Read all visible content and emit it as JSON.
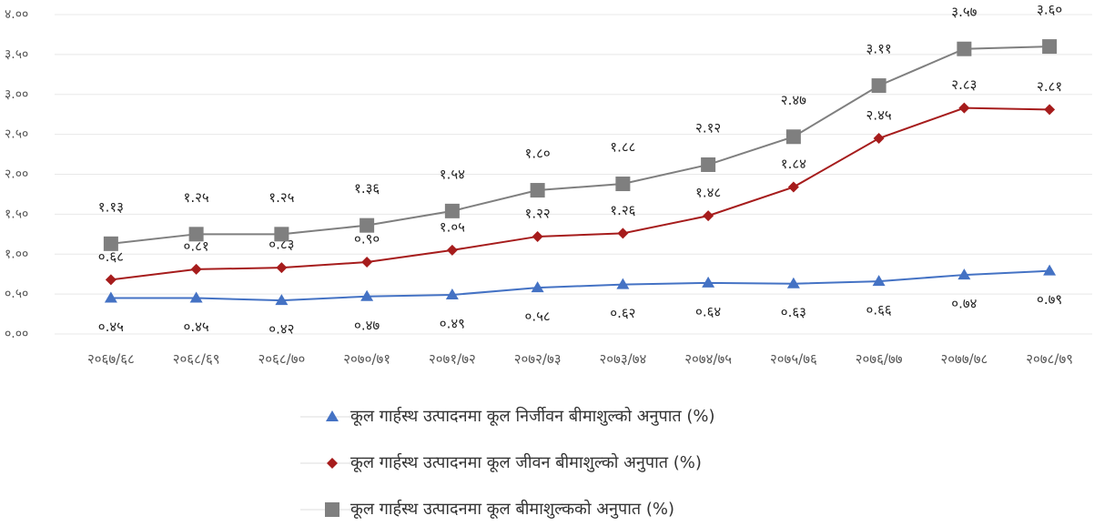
{
  "chart_data": {
    "type": "line",
    "categories": [
      "२०६७/६८",
      "२०६८/६९",
      "२०६८/७०",
      "२०७०/७१",
      "२०७१/७२",
      "२०७२/७३",
      "२०७३/७४",
      "२०७४/७५",
      "२०७५/७६",
      "२०७६/७७",
      "२०७७/७८",
      "२०७८/७९"
    ],
    "series": [
      {
        "name": "कूल गार्हस्थ उत्पादनमा कूल निर्जीवन बीमाशुल्को अनुपात (%)",
        "color": "#4472c4",
        "marker": "triangle",
        "values": [
          0.45,
          0.45,
          0.42,
          0.47,
          0.49,
          0.58,
          0.62,
          0.64,
          0.63,
          0.66,
          0.74,
          0.79
        ],
        "value_labels": [
          "०.४५",
          "०.४५",
          "०.४२",
          "०.४७",
          "०.४९",
          "०.५८",
          "०.६२",
          "०.६४",
          "०.६३",
          "०.६६",
          "०.७४",
          "०.७९"
        ]
      },
      {
        "name": "कूल गार्हस्थ उत्पादनमा कूल जीवन बीमाशुल्को अनुपात (%)",
        "color": "#a61c1c",
        "marker": "diamond",
        "values": [
          0.68,
          0.81,
          0.83,
          0.9,
          1.05,
          1.22,
          1.26,
          1.48,
          1.84,
          2.45,
          2.83,
          2.81
        ],
        "value_labels": [
          "०.६८",
          "०.८१",
          "०.८३",
          "०.९०",
          "१.०५",
          "१.२२",
          "१.२६",
          "१.४८",
          "१.८४",
          "२.४५",
          "२.८३",
          "२.८१"
        ]
      },
      {
        "name": "कूल गार्हस्थ उत्पादनमा कूल बीमाशुल्कको अनुपात (%)",
        "color": "#7f7f7f",
        "marker": "square",
        "values": [
          1.13,
          1.25,
          1.25,
          1.36,
          1.54,
          1.8,
          1.88,
          2.12,
          2.47,
          3.11,
          3.57,
          3.6
        ],
        "value_labels": [
          "१.१३",
          "१.२५",
          "१.२५",
          "१.३६",
          "१.५४",
          "१.८०",
          "१.८८",
          "२.१२",
          "२.४७",
          "३.११",
          "३.५७",
          "३.६०"
        ]
      }
    ],
    "ylim": [
      0,
      4
    ],
    "yticks": [
      {
        "value": 0,
        "label": "०.००"
      },
      {
        "value": 0.5,
        "label": "०.५०"
      },
      {
        "value": 1,
        "label": "१.००"
      },
      {
        "value": 1.5,
        "label": "१.५०"
      },
      {
        "value": 2,
        "label": "२.००"
      },
      {
        "value": 2.5,
        "label": "२.५०"
      },
      {
        "value": 3,
        "label": "३.००"
      },
      {
        "value": 3.5,
        "label": "३.५०"
      },
      {
        "value": 4,
        "label": "४.००"
      }
    ],
    "grid": true,
    "legend": "bottom"
  }
}
